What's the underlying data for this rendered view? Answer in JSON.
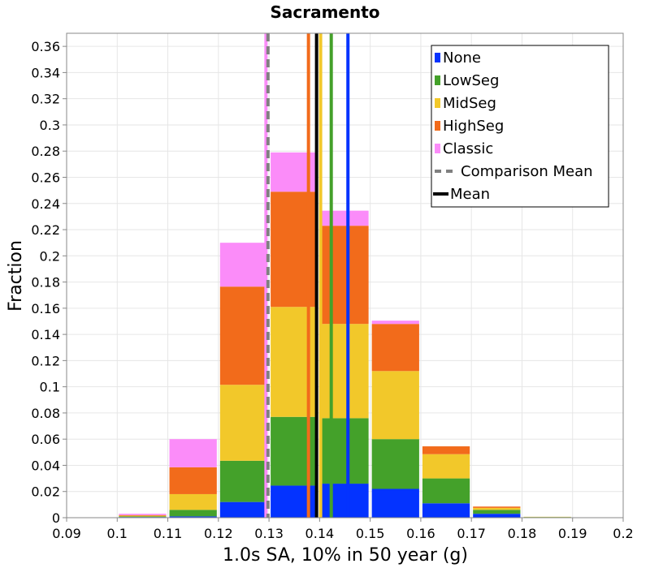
{
  "chart_data": {
    "type": "bar",
    "stacked": true,
    "title": "Sacramento",
    "xlabel": "1.0s SA, 10% in 50 year (g)",
    "ylabel": "Fraction",
    "xlim": [
      0.09,
      0.2
    ],
    "ylim": [
      0,
      0.37
    ],
    "x_ticks": [
      "0.09",
      "0.1",
      "0.11",
      "0.12",
      "0.13",
      "0.14",
      "0.15",
      "0.16",
      "0.17",
      "0.18",
      "0.19",
      "0.2"
    ],
    "y_ticks": [
      "0",
      "0.02",
      "0.04",
      "0.06",
      "0.08",
      "0.1",
      "0.12",
      "0.14",
      "0.16",
      "0.18",
      "0.2",
      "0.22",
      "0.24",
      "0.26",
      "0.28",
      "0.3",
      "0.32",
      "0.34",
      "0.36"
    ],
    "grid": true,
    "legend_position": "top-right",
    "bin_centers": [
      0.105,
      0.115,
      0.125,
      0.135,
      0.145,
      0.155,
      0.165,
      0.175,
      0.185,
      0.195
    ],
    "bin_width": 0.01,
    "series": [
      {
        "name": "None",
        "color": "#0433ff",
        "mean": 0.1456,
        "values": [
          0.0005,
          0.001,
          0.012,
          0.0245,
          0.026,
          0.022,
          0.011,
          0.003,
          0.0002,
          0
        ]
      },
      {
        "name": "LowSeg",
        "color": "#44a12a",
        "mean": 0.1423,
        "values": [
          0.0005,
          0.005,
          0.0315,
          0.0525,
          0.05,
          0.038,
          0.019,
          0.003,
          0.0003,
          0
        ]
      },
      {
        "name": "MidSeg",
        "color": "#f2c82a",
        "mean": 0.1402,
        "values": [
          0.0005,
          0.012,
          0.058,
          0.084,
          0.072,
          0.052,
          0.0185,
          0.0015,
          0.0002,
          0
        ]
      },
      {
        "name": "HighSeg",
        "color": "#f26b1b",
        "mean": 0.1378,
        "values": [
          0.0005,
          0.0205,
          0.075,
          0.088,
          0.075,
          0.036,
          0.006,
          0.001,
          0,
          0
        ]
      },
      {
        "name": "Classic",
        "color": "#fb8cf9",
        "mean": 0.1294,
        "values": [
          0.001,
          0.0215,
          0.0335,
          0.03,
          0.0115,
          0.0025,
          0,
          0,
          0,
          0
        ]
      }
    ],
    "comparison_mean": {
      "name": "Comparison Mean",
      "x": 0.1298,
      "color": "#808080"
    },
    "overall_mean": {
      "name": "Mean",
      "x": 0.1394,
      "color": "#000000"
    }
  }
}
